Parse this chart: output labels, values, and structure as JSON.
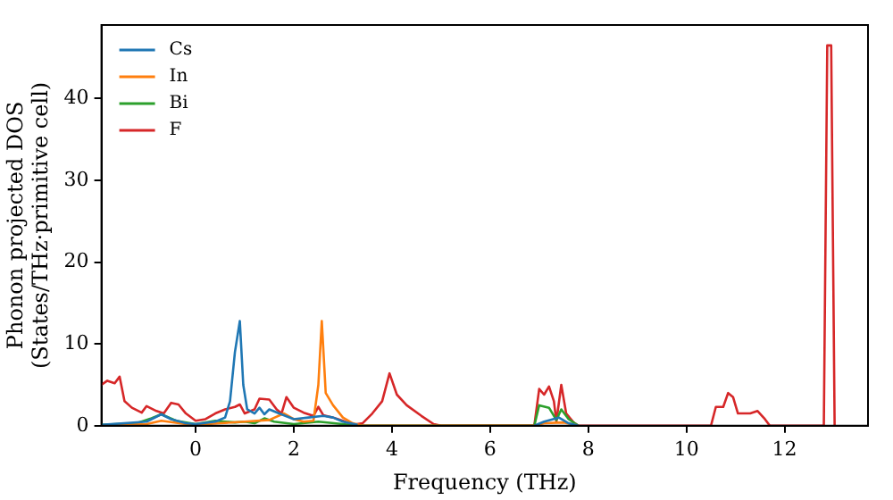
{
  "chart_data": {
    "type": "line",
    "xlabel": "Frequency (THz)",
    "ylabel": "Phonon projected DOS\n(States/THz·primitive cell)",
    "xlim": [
      -1.92,
      13.7
    ],
    "ylim": [
      0,
      49
    ],
    "xticks": [
      0,
      2,
      4,
      6,
      8,
      10,
      12
    ],
    "yticks": [
      0,
      10,
      20,
      30,
      40
    ],
    "grid": false,
    "legend": "top left",
    "marker": "none",
    "line_style": "solid",
    "series": [
      {
        "name": "Cs",
        "color": "#1f77b4",
        "x": [
          -1.92,
          -1.0,
          -0.7,
          -0.5,
          -0.2,
          0,
          0.4,
          0.6,
          0.7,
          0.8,
          0.9,
          0.97,
          1.05,
          1.2,
          1.3,
          1.4,
          1.5,
          1.7,
          2.0,
          2.3,
          2.6,
          2.8,
          3.0,
          3.3,
          3.5,
          6.9,
          7.1,
          7.4,
          7.6,
          7.8
        ],
        "values": [
          0.1,
          0.5,
          1.4,
          0.8,
          0.3,
          0.2,
          0.5,
          1,
          3,
          9,
          12.8,
          5,
          2,
          1.5,
          2.2,
          1.4,
          2,
          1.5,
          0.8,
          1,
          1.2,
          1,
          0.5,
          0.1,
          null,
          0,
          0.5,
          1,
          0.3,
          0
        ]
      },
      {
        "name": "In",
        "color": "#ff7f0e",
        "x": [
          -1.92,
          -1.0,
          -0.7,
          -0.2,
          0,
          0.5,
          1.0,
          1.5,
          1.8,
          2.0,
          2.2,
          2.4,
          2.5,
          2.57,
          2.65,
          2.8,
          3.0,
          3.2,
          3.4,
          6.9,
          7.1,
          7.5,
          7.8
        ],
        "values": [
          0,
          0.2,
          0.6,
          0.2,
          0.1,
          0.3,
          0.5,
          0.7,
          1.5,
          0.8,
          0.5,
          0.6,
          5,
          12.8,
          4,
          2.5,
          1,
          0.3,
          0,
          0,
          0.3,
          0.4,
          0
        ]
      },
      {
        "name": "Bi",
        "color": "#2ca02c",
        "x": [
          -1.92,
          -1.2,
          -0.9,
          -0.7,
          -0.4,
          0,
          0.4,
          0.8,
          1.0,
          1.2,
          1.4,
          1.6,
          2.0,
          2.5,
          3.0,
          3.3,
          6.9,
          7.0,
          7.2,
          7.35,
          7.45,
          7.6,
          7.8
        ],
        "values": [
          0.1,
          0.3,
          0.9,
          1.4,
          0.6,
          0.2,
          0.6,
          0.4,
          0.5,
          0.3,
          0.9,
          0.5,
          0.2,
          0.5,
          0.2,
          0,
          0,
          2.5,
          2.2,
          0.7,
          2,
          0.8,
          0
        ]
      },
      {
        "name": "F",
        "color": "#d62728",
        "x": [
          -1.92,
          -1.8,
          -1.65,
          -1.55,
          -1.45,
          -1.3,
          -1.1,
          -1.0,
          -0.8,
          -0.65,
          -0.5,
          -0.35,
          -0.2,
          0,
          0.2,
          0.4,
          0.6,
          0.8,
          0.9,
          1.0,
          1.2,
          1.3,
          1.5,
          1.65,
          1.75,
          1.85,
          2.0,
          2.2,
          2.4,
          2.5,
          2.6,
          2.8,
          3.0,
          3.2,
          3.4,
          3.6,
          3.8,
          3.95,
          4.1,
          4.3,
          4.6,
          4.85,
          5.0,
          6.9,
          7.0,
          7.1,
          7.2,
          7.3,
          7.35,
          7.45,
          7.55,
          7.7,
          7.8,
          10.5,
          10.6,
          10.75,
          10.85,
          10.95,
          11.05,
          11.3,
          11.45,
          11.6,
          11.7,
          12.8,
          12.87,
          12.95,
          13.02
        ],
        "values": [
          5,
          5.5,
          5.2,
          6,
          3,
          2.2,
          1.6,
          2.4,
          1.8,
          1.5,
          2.8,
          2.6,
          1.5,
          0.6,
          0.8,
          1.5,
          2,
          2.3,
          2.6,
          1.5,
          2,
          3.3,
          3.2,
          2,
          1.5,
          3.5,
          2.2,
          1.6,
          1.2,
          2.3,
          1.3,
          1.0,
          0.6,
          0.1,
          0.3,
          1.5,
          3,
          6.4,
          3.8,
          2.5,
          1.2,
          0.2,
          0,
          0,
          4.5,
          3.8,
          4.8,
          3,
          0.5,
          5,
          1.5,
          0.4,
          0,
          0,
          2.3,
          2.3,
          4,
          3.5,
          1.5,
          1.5,
          1.8,
          0.8,
          0,
          0,
          46.5,
          46.5,
          0
        ]
      }
    ]
  }
}
